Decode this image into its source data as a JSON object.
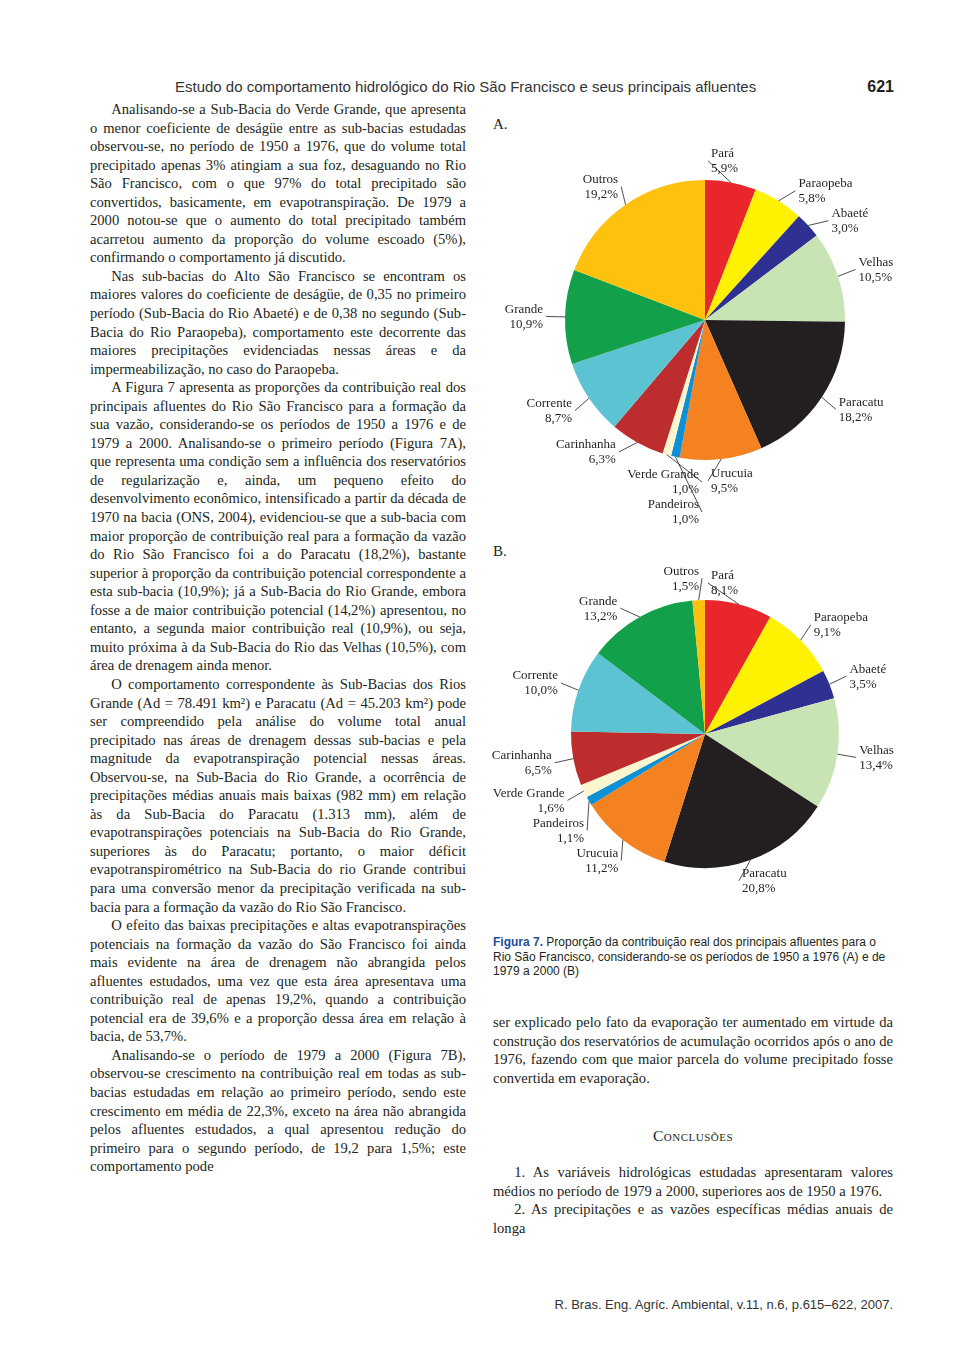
{
  "header": {
    "title": "Estudo do comportamento hidrológico do Rio São Francisco e seus principais afluentes",
    "page": "621"
  },
  "left_column": [
    "Analisando-se a Sub-Bacia do Verde Grande, que apresenta o menor coeficiente de deságüe entre as sub-bacias estudadas observou-se, no período de 1950 a 1976, que do volume total precipitado apenas 3% atingiam a sua foz, desaguando no Rio São Francisco, com o que 97% do total precipitado são convertidos, basicamente, em evapotranspiração. De 1979 a 2000 notou-se que o aumento do total precipitado também acarretou aumento da proporção do volume escoado (5%), confirmando o comportamento já discutido.",
    "Nas sub-bacias do Alto São Francisco se encontram os maiores valores do coeficiente de deságüe, de 0,35 no primeiro período (Sub-Bacia do Rio Abaeté) e de 0,38 no segundo (Sub-Bacia do Rio Paraopeba), comportamento este decorrente das maiores precipitações evidenciadas nessas áreas e da impermeabilização, no caso do Paraopeba.",
    "A Figura 7 apresenta as proporções da contribuição real dos principais afluentes do Rio São Francisco para a formação da sua vazão, considerando-se os períodos de 1950 a 1976 e de 1979 a 2000. Analisando-se o primeiro período (Figura 7A), que representa uma condição sem a influência dos reservatórios de regularização e, ainda, um pequeno efeito do desenvolvimento econômico, intensificado a partir da década de 1970 na bacia (ONS, 2004), evidenciou-se que a sub-bacia com maior proporção de contribuição real para a formação da vazão do Rio São Francisco foi a do Paracatu (18,2%), bastante superior à proporção da contribuição potencial correspondente a esta sub-bacia (10,9%); já a Sub-Bacia do Rio Grande, embora fosse a de maior contribuição potencial (14,2%) apresentou, no entanto, a segunda maior contribuição real (10,9%), ou seja, muito próxima à da Sub-Bacia do Rio das Velhas (10,5%), com área de drenagem ainda menor.",
    "O comportamento correspondente às Sub-Bacias dos Rios Grande (Ad = 78.491 km²) e Paracatu (Ad = 45.203 km²) pode ser compreendido pela análise do volume total anual precipitado nas áreas de drenagem dessas sub-bacias e pela magnitude da evapotranspiração potencial nessas áreas. Observou-se, na Sub-Bacia do Rio Grande, a ocorrência de precipitações médias anuais mais baixas (982 mm) em relação às da Sub-Bacia do Paracatu (1.313 mm), além de evapotranspirações potenciais na Sub-Bacia do Rio Grande, superiores às do Paracatu; portanto, o maior déficit evapotranspirométrico na Sub-Bacia do rio Grande contribui para uma conversão menor da precipitação verificada na sub-bacia para a formação da vazão do Rio São Francisco.",
    "O efeito das baixas precipitações e altas evapotranspirações potenciais na formação da vazão do São Francisco foi ainda mais evidente na área de drenagem não abrangida pelos afluentes estudados, uma vez que esta área apresentava uma contribuição real de apenas 19,2%, quando a contribuição potencial era de 39,6% e a proporção dessa área em relação à bacia, de 53,7%.",
    "Analisando-se o período de 1979 a 2000 (Figura 7B), observou-se crescimento na contribuição real em todas as sub-bacias estudadas em relação ao primeiro período, sendo este crescimento em média de 22,3%, exceto na área não abrangida pelos afluentes estudados, a qual apresentou redução do primeiro para o segundo período, de 19,2 para 1,5%; este comportamento pode"
  ],
  "chart_data": [
    {
      "type": "pie",
      "title": "A.",
      "categories": [
        "Pará",
        "Paraopeba",
        "Abaeté",
        "Velhas",
        "Paracatu",
        "Urucuia",
        "Pandeiros",
        "Verde Grande",
        "Carinhanha",
        "Corrente",
        "Grande",
        "Outros"
      ],
      "values": [
        5.9,
        5.8,
        3.0,
        10.5,
        18.2,
        9.5,
        1.0,
        1.0,
        6.3,
        8.7,
        10.9,
        19.2
      ],
      "value_labels": [
        "5,9%",
        "5,8%",
        "3,0%",
        "10,5%",
        "18,2%",
        "9,5%",
        "1,0%",
        "1,0%",
        "6,3%",
        "8,7%",
        "10,9%",
        "19,2%"
      ],
      "colors": [
        "#e8262b",
        "#fff200",
        "#2e3192",
        "#c8e4b4",
        "#231f20",
        "#f58220",
        "#0f8fd4",
        "#fbf6cf",
        "#be2d2d",
        "#5cc3d2",
        "#12a04b",
        "#fdc10e"
      ],
      "data_labels": true
    },
    {
      "type": "pie",
      "title": "B.",
      "categories": [
        "Pará",
        "Paraopeba",
        "Abaeté",
        "Velhas",
        "Paracatu",
        "Urucuia",
        "Pandeiros",
        "Verde Grande",
        "Carinhanha",
        "Corrente",
        "Grande",
        "Outros"
      ],
      "values": [
        8.1,
        9.1,
        3.5,
        13.4,
        20.8,
        11.2,
        1.1,
        1.6,
        6.5,
        10.0,
        13.2,
        1.5
      ],
      "value_labels": [
        "8,1%",
        "9,1%",
        "3,5%",
        "13,4%",
        "20,8%",
        "11,2%",
        "1,1%",
        "1,6%",
        "6,5%",
        "10,0%",
        "13,2%",
        "1,5%"
      ],
      "colors": [
        "#e8262b",
        "#fff200",
        "#2e3192",
        "#c8e4b4",
        "#231f20",
        "#f58220",
        "#0f8fd4",
        "#fbf6cf",
        "#be2d2d",
        "#5cc3d2",
        "#12a04b",
        "#fdc10e"
      ],
      "data_labels": true
    }
  ],
  "figure_caption": {
    "label": "Figura 7.",
    "text": "Proporção da contribuição real dos principais afluentes para o Rio São Francisco, considerando-se os períodos de 1950 a 1976 (A) e de 1979 a 2000 (B)"
  },
  "right_column": "ser explicado pelo fato da evaporação ter aumentado em virtude da construção dos reservatórios de acumulação ocorridos após o ano de 1976, fazendo com que maior parcela do volume precipitado fosse convertida em evaporação.",
  "section_heading": "Conclusões",
  "conclusions": [
    "1. As variáveis hidrológicas estudadas apresentaram valores médios no período de 1979 a 2000, superiores aos de 1950 a 1976.",
    "2. As precipitações e as vazões específicas médias anuais de longa"
  ],
  "footer": "R. Bras. Eng. Agríc. Ambiental, v.11, n.6, p.615–622, 2007."
}
